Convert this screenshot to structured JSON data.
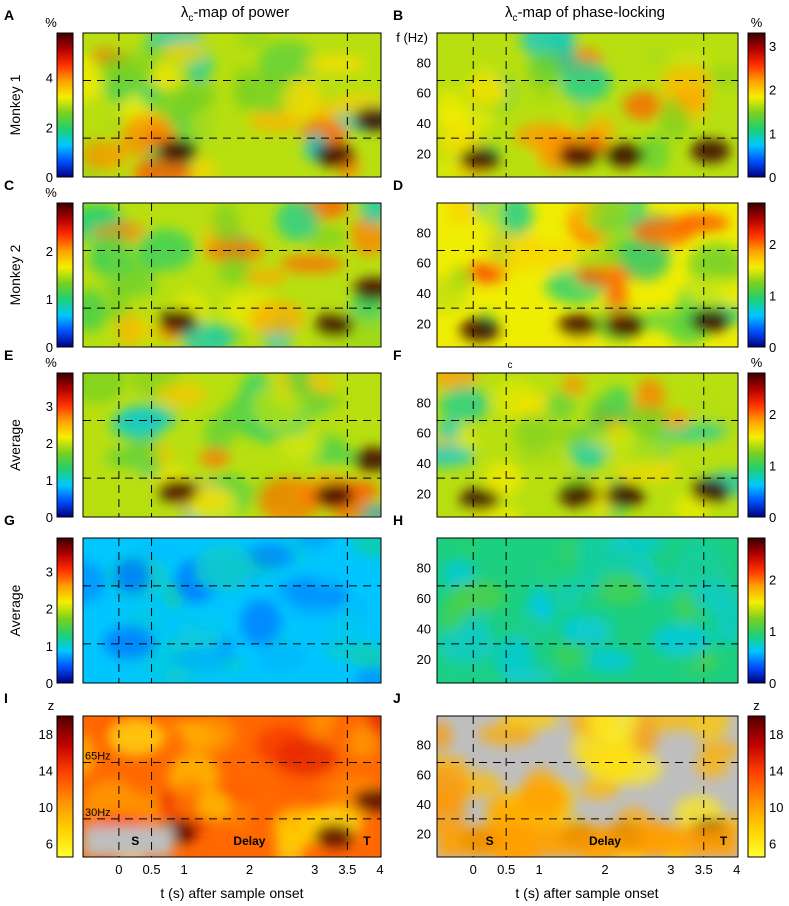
{
  "titles": {
    "left_prefix": "λ",
    "left_sub": "c",
    "left_suffix": "-map of power",
    "right_prefix": "λ",
    "right_sub": "c",
    "right_suffix": "-map of phase-locking"
  },
  "freq_axis_label": "f (Hz)",
  "x_axis_label": "t (s) after sample onset",
  "stray_label": "c",
  "colors": {
    "heat_scale": [
      "#00007f",
      "#0050ff",
      "#00c8ff",
      "#20d070",
      "#7ad020",
      "#f5ee00",
      "#ffa000",
      "#ff3000",
      "#b00000",
      "#3a0000"
    ],
    "z_scale": [
      "#ffff30",
      "#ffd000",
      "#ff9000",
      "#ff4000",
      "#c00000",
      "#500000"
    ],
    "gray_mask": "#bebebe"
  },
  "chart_data": [
    {
      "panel": "A",
      "type": "heatmap",
      "row_label": "Monkey 1",
      "colorbar_unit": "%",
      "colorbar_ticks": [
        "0",
        "2",
        "4"
      ],
      "ylim": [
        0,
        5.8
      ],
      "freq_ticks": [],
      "x_ticks": [],
      "markers": [],
      "level": 0.5
    },
    {
      "panel": "B",
      "type": "heatmap",
      "row_label": "",
      "colorbar_unit": "%",
      "colorbar_ticks": [
        "0",
        "1",
        "2",
        "3"
      ],
      "ylim": [
        0,
        3.3
      ],
      "freq_ticks": [
        "20",
        "40",
        "60",
        "80"
      ],
      "x_ticks": [],
      "markers": [],
      "level": 0.5
    },
    {
      "panel": "C",
      "type": "heatmap",
      "row_label": "Monkey 2",
      "colorbar_unit": "%",
      "colorbar_ticks": [
        "0",
        "1",
        "2"
      ],
      "ylim": [
        0,
        3.0
      ],
      "freq_ticks": [],
      "x_ticks": [],
      "markers": [],
      "level": 0.5
    },
    {
      "panel": "D",
      "type": "heatmap",
      "row_label": "",
      "colorbar_unit": "",
      "colorbar_ticks": [
        "0",
        "1",
        "2"
      ],
      "ylim": [
        0,
        2.8
      ],
      "freq_ticks": [
        "20",
        "40",
        "60",
        "80"
      ],
      "x_ticks": [],
      "markers": [],
      "level": 0.55
    },
    {
      "panel": "E",
      "type": "heatmap",
      "row_label": "Average",
      "colorbar_unit": "%",
      "colorbar_ticks": [
        "0",
        "1",
        "2",
        "3"
      ],
      "ylim": [
        0,
        3.9
      ],
      "freq_ticks": [],
      "x_ticks": [],
      "markers": [],
      "level": 0.5
    },
    {
      "panel": "F",
      "type": "heatmap",
      "row_label": "",
      "colorbar_unit": "%",
      "colorbar_ticks": [
        "0",
        "1",
        "2"
      ],
      "ylim": [
        0,
        2.8
      ],
      "freq_ticks": [
        "20",
        "40",
        "60",
        "80"
      ],
      "x_ticks": [],
      "markers": [],
      "level": 0.5
    },
    {
      "panel": "G",
      "type": "heatmap",
      "row_label": "Average",
      "colorbar_unit": "",
      "colorbar_ticks": [
        "0",
        "1",
        "2",
        "3"
      ],
      "ylim": [
        0,
        3.9
      ],
      "freq_ticks": [],
      "x_ticks": [],
      "markers": [],
      "level": 0.22
    },
    {
      "panel": "H",
      "type": "heatmap",
      "row_label": "",
      "colorbar_unit": "",
      "colorbar_ticks": [
        "0",
        "1",
        "2"
      ],
      "ylim": [
        0,
        2.8
      ],
      "freq_ticks": [
        "20",
        "40",
        "60",
        "80"
      ],
      "x_ticks": [],
      "markers": [],
      "level": 0.32
    },
    {
      "panel": "I",
      "type": "heatmap",
      "row_label": "",
      "colorbar_unit": "z",
      "colorbar_ticks": [
        "6",
        "10",
        "14",
        "18"
      ],
      "ylim": [
        4.5,
        20
      ],
      "freq_ticks": [],
      "freq_labels": [
        "65Hz",
        "30Hz"
      ],
      "x_ticks": [
        "0",
        "0.5",
        "1",
        "2",
        "3",
        "3.5",
        "4"
      ],
      "markers": [
        "S",
        "Delay",
        "T"
      ],
      "level": 0.5
    },
    {
      "panel": "J",
      "type": "heatmap",
      "row_label": "",
      "colorbar_unit": "z",
      "colorbar_ticks": [
        "6",
        "10",
        "14",
        "18"
      ],
      "ylim": [
        4.5,
        20
      ],
      "freq_ticks": [
        "20",
        "40",
        "60",
        "80"
      ],
      "x_ticks": [
        "0",
        "0.5",
        "1",
        "2",
        "3",
        "3.5",
        "4"
      ],
      "markers": [
        "S",
        "Delay",
        "T"
      ],
      "level": 0.45
    }
  ]
}
